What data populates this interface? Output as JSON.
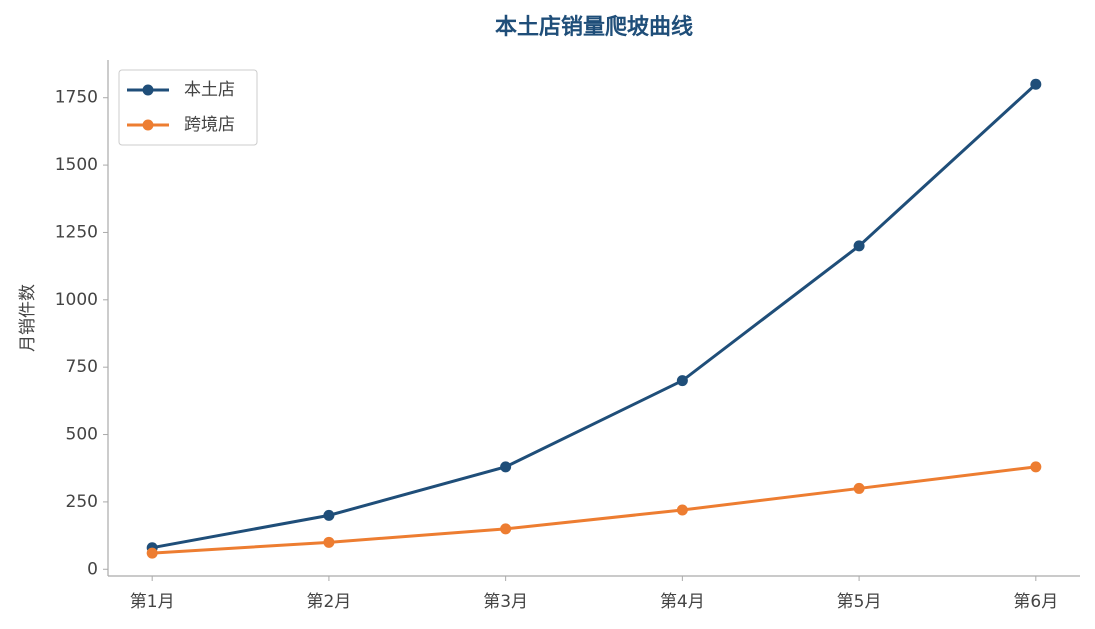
{
  "chart_data": {
    "type": "line",
    "title": "本土店销量爬坡曲线",
    "y_label": "月销件数",
    "categories": [
      "第1月",
      "第2月",
      "第3月",
      "第4月",
      "第5月",
      "第6月"
    ],
    "series": [
      {
        "name": "本土店",
        "color": "#1f4e79",
        "values": [
          80,
          200,
          380,
          700,
          1200,
          1800
        ]
      },
      {
        "name": "跨境店",
        "color": "#ed7d31",
        "values": [
          60,
          100,
          150,
          220,
          300,
          380
        ]
      }
    ],
    "ylim": [
      -25,
      1890
    ],
    "yticks": [
      0,
      250,
      500,
      750,
      1000,
      1250,
      1500,
      1750
    ],
    "grid": false,
    "legend": "upper left"
  }
}
